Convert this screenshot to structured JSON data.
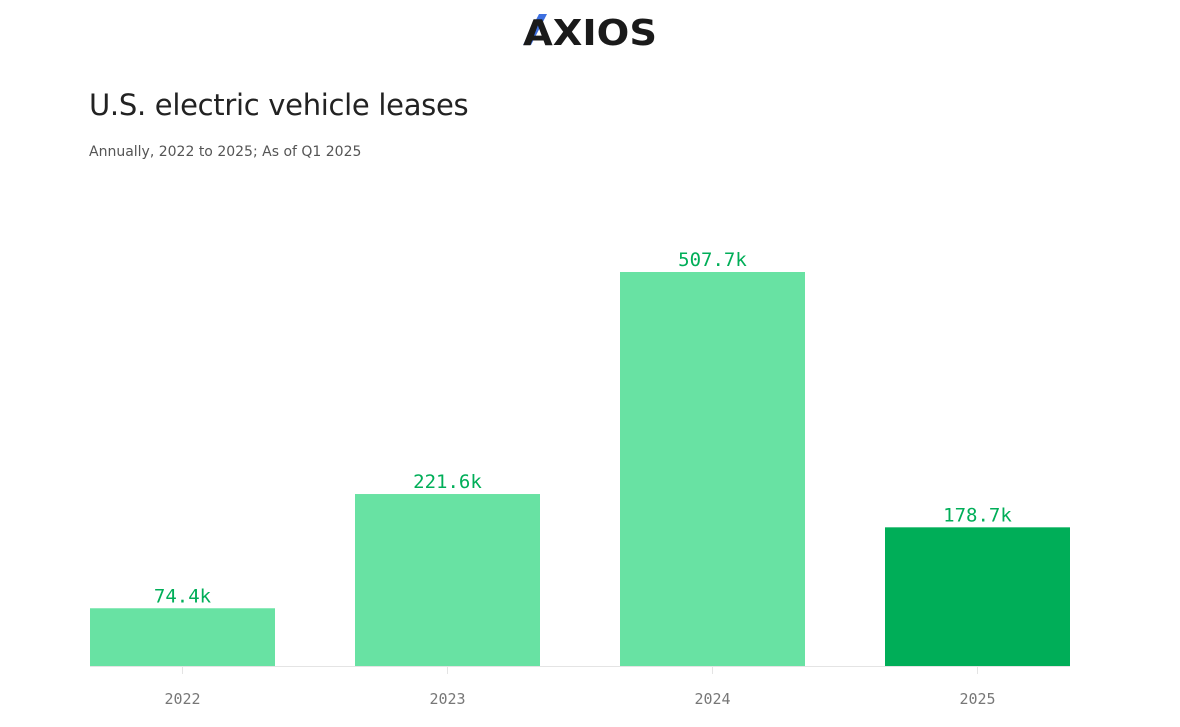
{
  "logo": {
    "text": "AXIOS",
    "accent_color": "#3D6FE0",
    "text_color": "#1a1a1a"
  },
  "chart_data": {
    "type": "bar",
    "title": "U.S. electric vehicle leases",
    "subtitle": "Annually, 2022 to 2025; As of Q1 2025",
    "categories": [
      "2022",
      "2023",
      "2024",
      "2025"
    ],
    "values": [
      74.4,
      221.6,
      507.7,
      178.7
    ],
    "value_labels": [
      "74.4k",
      "221.6k",
      "507.7k",
      "178.7k"
    ],
    "unit": "k",
    "ylim": [
      0,
      507.7
    ],
    "grid": false,
    "colors": {
      "bar": "#68E2A3",
      "bar_highlight": "#00AE58",
      "label": "#00AE58",
      "tick_label": "#777777",
      "baseline": "#E4E4E4"
    },
    "highlight_index": 3
  }
}
